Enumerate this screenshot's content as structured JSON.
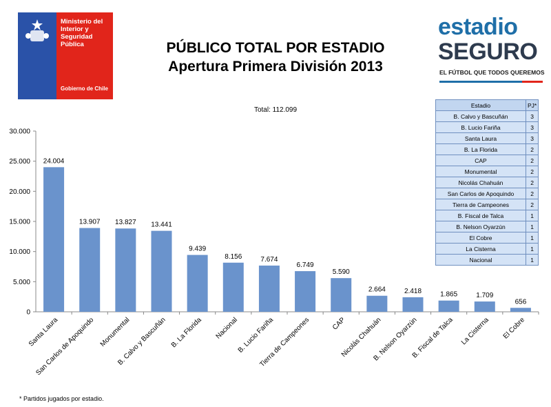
{
  "gov_logo": {
    "ministry": "Ministerio del\nInterior y\nSeguridad\nPública",
    "footer": "Gobierno de Chile",
    "colors": {
      "blue": "#2a52a8",
      "red": "#e1251b"
    }
  },
  "title": {
    "line1": "PÚBLICO TOTAL POR ESTADIO",
    "line2": "Apertura Primera División 2013"
  },
  "brand_logo": {
    "line1": "estadio",
    "line2": "SEGURO",
    "tagline": "EL FÚTBOL QUE TODOS QUEREMOS"
  },
  "total_label": "Total: 112.099",
  "table": {
    "headers": [
      "Estadio",
      "PJ*"
    ],
    "rows": [
      [
        "B. Calvo y Bascuñán",
        "3"
      ],
      [
        "B. Lucio Fariña",
        "3"
      ],
      [
        "Santa Laura",
        "3"
      ],
      [
        "B. La Florida",
        "2"
      ],
      [
        "CAP",
        "2"
      ],
      [
        "Monumental",
        "2"
      ],
      [
        "Nicolás Chahuán",
        "2"
      ],
      [
        "San Carlos de Apoquindo",
        "2"
      ],
      [
        "Tierra de Campeones",
        "2"
      ],
      [
        "B. Fiscal de Talca",
        "1"
      ],
      [
        "B. Nelson Oyarzún",
        "1"
      ],
      [
        "El Cobre",
        "1"
      ],
      [
        "La Cisterna",
        "1"
      ],
      [
        "Nacional",
        "1"
      ]
    ]
  },
  "footnote": "* Partidos jugados por estadio.",
  "chart_data": {
    "type": "bar",
    "title": "PÚBLICO TOTAL POR ESTADIO",
    "subtitle": "Apertura Primera División 2013",
    "categories": [
      "Santa Laura",
      "San Carlos de Apoquindo",
      "Monumental",
      "B. Calvo y Bascuñán",
      "B. La Florida",
      "Nacional",
      "B. Lucio Fariña",
      "Tierra de Campeones",
      "CAP",
      "Nicolás Chahuán",
      "B. Nelson Oyarzún",
      "B. Fiscal de Talca",
      "La Cisterna",
      "El Cobre"
    ],
    "values": [
      24004,
      13907,
      13827,
      13441,
      9439,
      8156,
      7674,
      6749,
      5590,
      2664,
      2418,
      1865,
      1709,
      656
    ],
    "value_labels": [
      "24.004",
      "13.907",
      "13.827",
      "13.441",
      "9.439",
      "8.156",
      "7.674",
      "6.749",
      "5.590",
      "2.664",
      "2.418",
      "1.865",
      "1.709",
      "656"
    ],
    "yticks": [
      0,
      5000,
      10000,
      15000,
      20000,
      25000,
      30000
    ],
    "ytick_labels": [
      "0",
      "5.000",
      "10.000",
      "15.000",
      "20.000",
      "25.000",
      "30.000"
    ],
    "ylim": [
      0,
      30000
    ],
    "xlabel": "",
    "ylabel": "",
    "grid": false,
    "bar_color": "#6a93cc"
  }
}
